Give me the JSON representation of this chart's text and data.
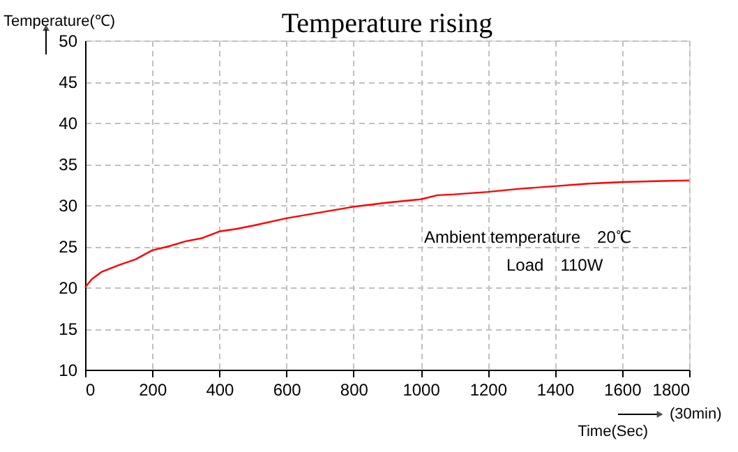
{
  "chart_data": {
    "type": "line",
    "title": "Temperature rising",
    "xlabel": "Time(Sec)",
    "ylabel": "Temperature(℃)",
    "x": [
      0,
      20,
      50,
      100,
      150,
      200,
      250,
      300,
      350,
      400,
      450,
      500,
      600,
      700,
      800,
      900,
      1000,
      1050,
      1100,
      1200,
      1300,
      1400,
      1500,
      1600,
      1700,
      1800
    ],
    "series": [
      {
        "color": "#ff0000",
        "values": [
          20,
          21,
          21.9,
          22.7,
          23.4,
          24.5,
          25,
          25.6,
          26,
          26.8,
          27.1,
          27.5,
          28.4,
          29.1,
          29.8,
          30.3,
          30.7,
          31.2,
          31.3,
          31.6,
          32,
          32.3,
          32.6,
          32.8,
          32.9,
          33
        ]
      }
    ],
    "xlim": [
      0,
      1800
    ],
    "xticks": [
      0,
      200,
      400,
      600,
      800,
      1000,
      1200,
      1400,
      1600,
      1800
    ],
    "ylim": [
      10,
      50
    ],
    "yticks": [
      10,
      15,
      20,
      25,
      30,
      35,
      40,
      45,
      50
    ],
    "annotations": [
      "Ambient temperature　20℃",
      "Load　110W",
      "(30min)"
    ],
    "grid": true,
    "legend": false,
    "marker": "none",
    "line_style": "solid"
  }
}
